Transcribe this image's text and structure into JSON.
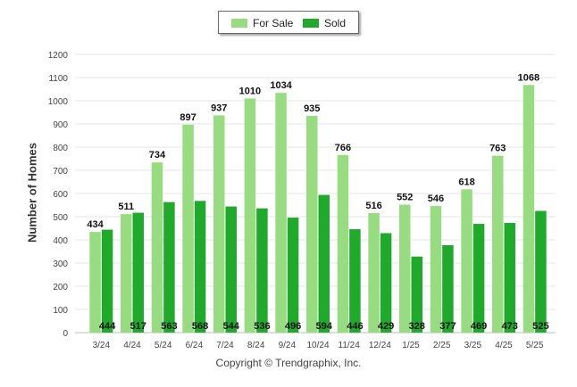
{
  "chart_data": {
    "type": "bar",
    "ylabel": "Number of Homes",
    "ylim": [
      0,
      1200
    ],
    "yticks": [
      0,
      100,
      200,
      300,
      400,
      500,
      600,
      700,
      800,
      900,
      1000,
      1100,
      1200
    ],
    "grid": true,
    "legend_position": "top-center",
    "categories": [
      "3/24",
      "4/24",
      "5/24",
      "6/24",
      "7/24",
      "8/24",
      "9/24",
      "10/24",
      "11/24",
      "12/24",
      "1/25",
      "2/25",
      "3/25",
      "4/25",
      "5/25"
    ],
    "series": [
      {
        "name": "For Sale",
        "color": "#98dc82",
        "label_position": "top",
        "values": [
          434,
          511,
          734,
          897,
          937,
          1010,
          1034,
          935,
          766,
          516,
          552,
          546,
          618,
          763,
          1068
        ]
      },
      {
        "name": "Sold",
        "color": "#1faa2c",
        "label_position": "bottom",
        "values": [
          444,
          517,
          563,
          568,
          544,
          536,
          496,
          594,
          446,
          429,
          328,
          377,
          469,
          473,
          525
        ]
      }
    ]
  },
  "credit": "Copyright © Trendgraphix, Inc."
}
